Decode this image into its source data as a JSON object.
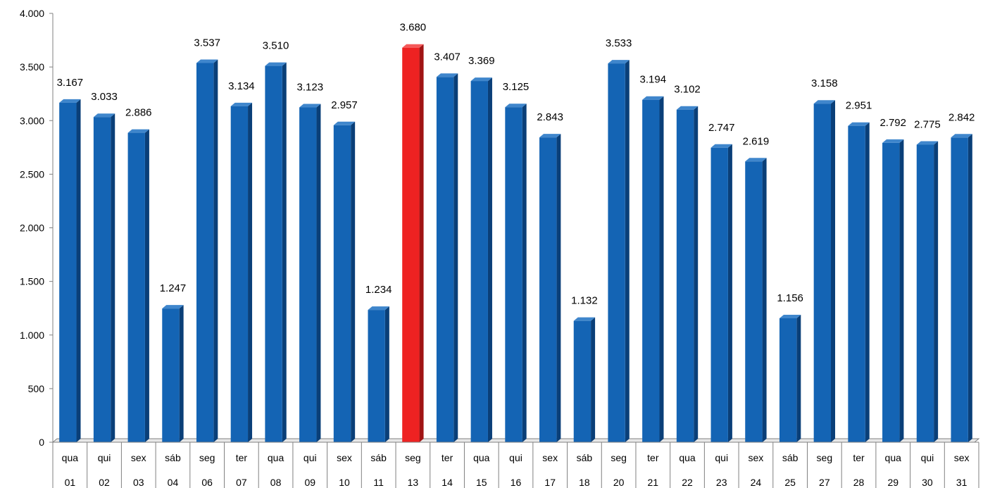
{
  "chart_data": {
    "type": "bar",
    "categories": [
      {
        "day": "qua",
        "date": "01"
      },
      {
        "day": "qui",
        "date": "02"
      },
      {
        "day": "sex",
        "date": "03"
      },
      {
        "day": "sáb",
        "date": "04"
      },
      {
        "day": "seg",
        "date": "06"
      },
      {
        "day": "ter",
        "date": "07"
      },
      {
        "day": "qua",
        "date": "08"
      },
      {
        "day": "qui",
        "date": "09"
      },
      {
        "day": "sex",
        "date": "10"
      },
      {
        "day": "sáb",
        "date": "11"
      },
      {
        "day": "seg",
        "date": "13"
      },
      {
        "day": "ter",
        "date": "14"
      },
      {
        "day": "qua",
        "date": "15"
      },
      {
        "day": "qui",
        "date": "16"
      },
      {
        "day": "sex",
        "date": "17"
      },
      {
        "day": "sáb",
        "date": "18"
      },
      {
        "day": "seg",
        "date": "20"
      },
      {
        "day": "ter",
        "date": "21"
      },
      {
        "day": "qua",
        "date": "22"
      },
      {
        "day": "qui",
        "date": "23"
      },
      {
        "day": "sex",
        "date": "24"
      },
      {
        "day": "sáb",
        "date": "25"
      },
      {
        "day": "seg",
        "date": "27"
      },
      {
        "day": "ter",
        "date": "28"
      },
      {
        "day": "qua",
        "date": "29"
      },
      {
        "day": "qui",
        "date": "30"
      },
      {
        "day": "sex",
        "date": "31"
      }
    ],
    "values": [
      3167,
      3033,
      2886,
      1247,
      3537,
      3134,
      3510,
      3123,
      2957,
      1234,
      3680,
      3407,
      3369,
      3125,
      2843,
      1132,
      3533,
      3194,
      3102,
      2747,
      2619,
      1156,
      3158,
      2951,
      2792,
      2775,
      2842
    ],
    "value_labels": [
      "3.167",
      "3.033",
      "2.886",
      "1.247",
      "3.537",
      "3.134",
      "3.510",
      "3.123",
      "2.957",
      "1.234",
      "3.680",
      "3.407",
      "3.369",
      "3.125",
      "2.843",
      "1.132",
      "3.533",
      "3.194",
      "3.102",
      "2.747",
      "2.619",
      "1.156",
      "3.158",
      "2.951",
      "2.792",
      "2.775",
      "2.842"
    ],
    "highlight_index": 10,
    "ylim": [
      0,
      4000
    ],
    "yticks": [
      0,
      500,
      1000,
      1500,
      2000,
      2500,
      3000,
      3500,
      4000
    ],
    "ytick_labels": [
      "0",
      "500",
      "1.000",
      "1.500",
      "2.000",
      "2.500",
      "3.000",
      "3.500",
      "4.000"
    ],
    "grid": false,
    "legend": "none",
    "colors": {
      "bar": "#1464b4",
      "bar_side": "#0a3f78",
      "bar_top": "#3f86cc",
      "highlight": "#ee2222",
      "highlight_side": "#a01414",
      "highlight_top": "#f45a5a",
      "axis": "#808080"
    }
  }
}
